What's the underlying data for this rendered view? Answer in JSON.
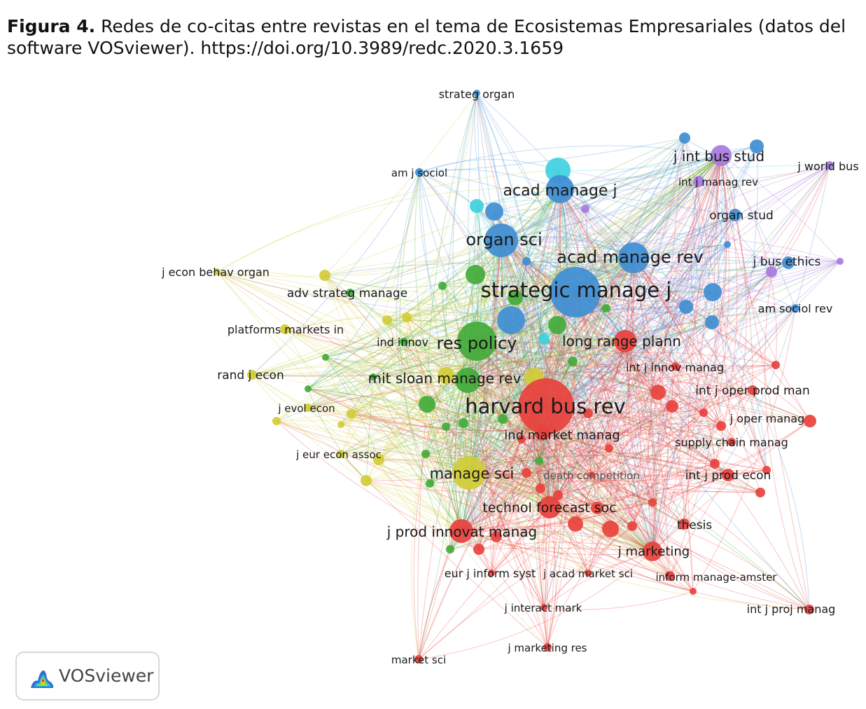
{
  "caption": {
    "label": "Figura 4.",
    "text": "Redes de co-citas entre revistas en el tema de Ecosistemas Empresariales (datos del software VOSviewer). https://doi.org/10.3989/redc.2020.3.1659"
  },
  "colors": {
    "red": "#e8423d",
    "green": "#43ab3a",
    "blue": "#3f8ed3",
    "yellow": "#d1cc38",
    "purple": "#a77be0",
    "cyan": "#3fd0e0"
  },
  "nodes": [
    {
      "label": "harvard bus rev",
      "cluster": "red"
    },
    {
      "label": "strategic manage j",
      "cluster": "blue"
    },
    {
      "label": "acad manage rev",
      "cluster": "blue"
    },
    {
      "label": "acad manage j",
      "cluster": "blue"
    },
    {
      "label": "organ sci",
      "cluster": "blue"
    },
    {
      "label": "res policy",
      "cluster": "green"
    },
    {
      "label": "mit sloan manage rev",
      "cluster": "green"
    },
    {
      "label": "manage sci",
      "cluster": "yellow"
    },
    {
      "label": "technol forecast soc",
      "cluster": "red"
    },
    {
      "label": "j prod innovat manag",
      "cluster": "red"
    },
    {
      "label": "long range plann",
      "cluster": "red"
    },
    {
      "label": "ind market manag",
      "cluster": "red"
    },
    {
      "label": "j int bus stud",
      "cluster": "purple"
    },
    {
      "label": "j marketing",
      "cluster": "red"
    },
    {
      "label": "strateg organ",
      "cluster": "blue"
    },
    {
      "label": "am j sociol",
      "cluster": "blue"
    },
    {
      "label": "j world bus",
      "cluster": "purple"
    },
    {
      "label": "int j manag rev",
      "cluster": "purple"
    },
    {
      "label": "organ stud",
      "cluster": "blue"
    },
    {
      "label": "j bus ethics",
      "cluster": "purple"
    },
    {
      "label": "am sociol rev",
      "cluster": "blue"
    },
    {
      "label": "j econ behav organ",
      "cluster": "yellow"
    },
    {
      "label": "adv strateg manage",
      "cluster": "green"
    },
    {
      "label": "platforms markets in",
      "cluster": "yellow"
    },
    {
      "label": "ind innov",
      "cluster": "green"
    },
    {
      "label": "rand j econ",
      "cluster": "yellow"
    },
    {
      "label": "j evol econ",
      "cluster": "yellow"
    },
    {
      "label": "j eur econ assoc",
      "cluster": "yellow"
    },
    {
      "label": "int j innov manag",
      "cluster": "red"
    },
    {
      "label": "int j oper prod man",
      "cluster": "red"
    },
    {
      "label": "j oper manag",
      "cluster": "red"
    },
    {
      "label": "supply chain manag",
      "cluster": "red"
    },
    {
      "label": "int j prod econ",
      "cluster": "red"
    },
    {
      "label": "death competition",
      "cluster": "red"
    },
    {
      "label": "thesis",
      "cluster": "red"
    },
    {
      "label": "eur j inform syst",
      "cluster": "red"
    },
    {
      "label": "j acad market sci",
      "cluster": "red"
    },
    {
      "label": "inform manage-amster",
      "cluster": "red"
    },
    {
      "label": "j interact mark",
      "cluster": "red"
    },
    {
      "label": "int j proj manag",
      "cluster": "red"
    },
    {
      "label": "j marketing res",
      "cluster": "red"
    },
    {
      "label": "market sci",
      "cluster": "red"
    }
  ],
  "logo": {
    "text": "VOSviewer",
    "icon": "vosviewer-heatmap-icon"
  }
}
